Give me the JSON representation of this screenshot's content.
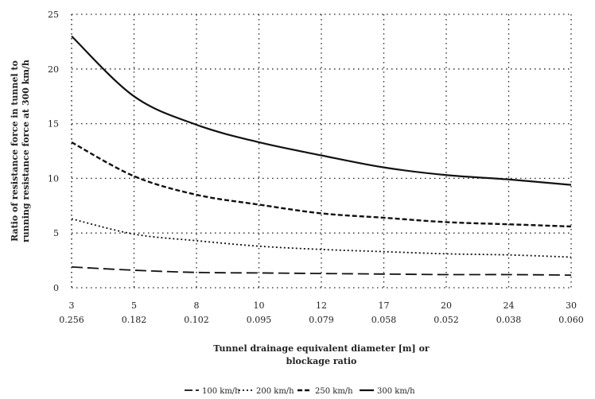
{
  "chart_data": {
    "type": "line",
    "ylabel_lines": [
      "Ratio of resistance force in tunnel to",
      "running resistance force at 300 km/h"
    ],
    "xlabel_lines": [
      "Tunnel drainage equivalent diameter [m] or",
      "blockage ratio"
    ],
    "x": [
      3,
      5,
      8,
      10,
      12,
      17,
      20,
      24,
      30
    ],
    "x_tick_top": [
      "3",
      "5",
      "8",
      "10",
      "12",
      "17",
      "20",
      "24",
      "30"
    ],
    "x_tick_bottom": [
      "0.256",
      "0.182",
      "0.102",
      "0.095",
      "0.079",
      "0.058",
      "0.052",
      "0.038",
      "0.060"
    ],
    "xlim": [
      0,
      8
    ],
    "ylim": [
      0,
      25
    ],
    "y_ticks": [
      "0",
      "5",
      "10",
      "15",
      "20",
      "25"
    ],
    "grid": true,
    "legend_position": "bottom",
    "series": [
      {
        "name": "100 km/h",
        "style": "long-dash",
        "values": [
          1.9,
          1.6,
          1.4,
          1.35,
          1.3,
          1.25,
          1.2,
          1.2,
          1.15
        ]
      },
      {
        "name": "200 km/h",
        "style": "dotted",
        "values": [
          6.3,
          4.9,
          4.3,
          3.8,
          3.5,
          3.3,
          3.1,
          3.0,
          2.8
        ]
      },
      {
        "name": "250 km/h",
        "style": "dashed",
        "values": [
          13.3,
          10.2,
          8.5,
          7.6,
          6.8,
          6.4,
          6.0,
          5.8,
          5.6
        ]
      },
      {
        "name": "300 km/h",
        "style": "solid",
        "values": [
          23.0,
          17.5,
          14.9,
          13.3,
          12.1,
          11.0,
          10.3,
          9.9,
          9.4
        ]
      }
    ]
  }
}
